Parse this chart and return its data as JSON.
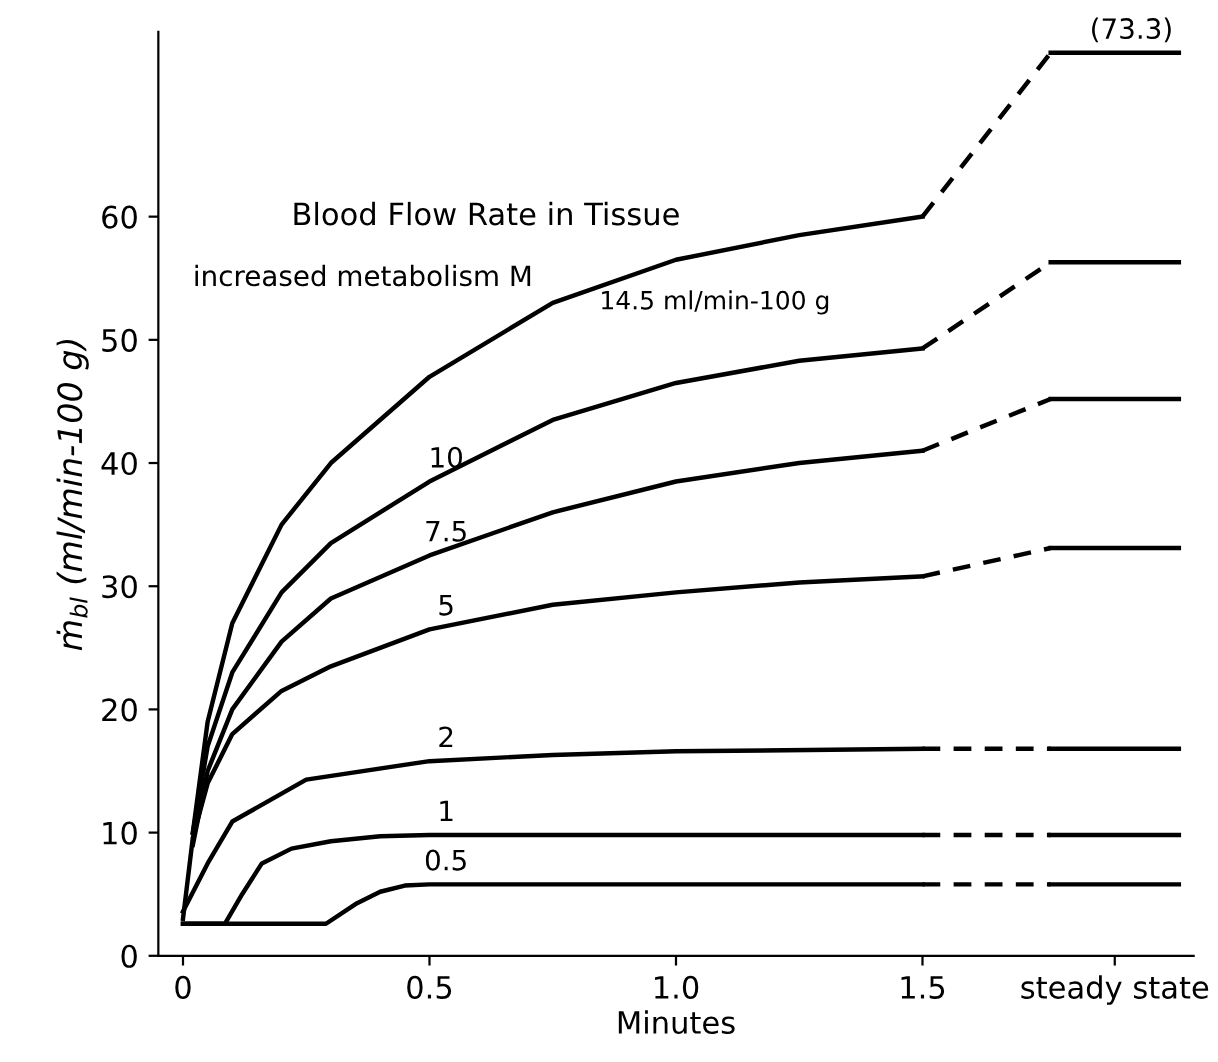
{
  "chart_data": {
    "type": "line",
    "title": "Blood Flow Rate in Tissue",
    "subtitle": "increased metabolism M",
    "xlabel": "Minutes",
    "ylabel": "ṁ$_{bl}$ (ml/min-100 g)",
    "xlim": [
      -0.05,
      2.05
    ],
    "ylim": [
      0,
      75
    ],
    "xticks": [
      0,
      0.5,
      {
        "value": 1.0,
        "label": "1.0"
      },
      1.5,
      {
        "value": 1.89,
        "label": "steady state"
      }
    ],
    "yticks": [
      0,
      10,
      20,
      30,
      40,
      50,
      60
    ],
    "grid": false,
    "legend": false,
    "marker": "none",
    "series": [
      {
        "color": "#000000",
        "line_style": "solid",
        "x": [
          0.02,
          0.05,
          0.1,
          0.2,
          0.3,
          0.5,
          0.75,
          1.0,
          1.25,
          1.5
        ],
        "values": [
          10,
          19,
          27,
          35,
          40,
          47,
          53,
          56.5,
          58.5,
          60
        ]
      },
      {
        "color": "#000000",
        "line_style": "dashed",
        "x": [
          1.5,
          1.76
        ],
        "values": [
          60,
          73.3
        ]
      },
      {
        "color": "#000000",
        "line_style": "solid",
        "x": [
          1.76,
          2.02
        ],
        "values": [
          73.3,
          73.3
        ]
      },
      {
        "color": "#000000",
        "line_style": "solid",
        "x": [
          0.02,
          0.05,
          0.1,
          0.2,
          0.3,
          0.5,
          0.75,
          1.0,
          1.25,
          1.5
        ],
        "values": [
          10,
          17,
          23,
          29.5,
          33.5,
          38.5,
          43.5,
          46.5,
          48.3,
          49.3
        ]
      },
      {
        "color": "#000000",
        "line_style": "dashed",
        "x": [
          1.5,
          1.76
        ],
        "values": [
          49.3,
          56.3
        ]
      },
      {
        "color": "#000000",
        "line_style": "solid",
        "x": [
          1.76,
          2.02
        ],
        "values": [
          56.3,
          56.3
        ]
      },
      {
        "color": "#000000",
        "line_style": "solid",
        "x": [
          0.02,
          0.05,
          0.1,
          0.2,
          0.3,
          0.5,
          0.75,
          1.0,
          1.25,
          1.5
        ],
        "values": [
          9,
          15,
          20,
          25.5,
          29,
          32.5,
          36,
          38.5,
          40,
          41
        ]
      },
      {
        "color": "#000000",
        "line_style": "dashed",
        "x": [
          1.5,
          1.76
        ],
        "values": [
          41,
          45.2
        ]
      },
      {
        "color": "#000000",
        "line_style": "solid",
        "x": [
          1.76,
          2.02
        ],
        "values": [
          45.2,
          45.2
        ]
      },
      {
        "color": "#000000",
        "line_style": "solid",
        "x": [
          0,
          0.02,
          0.05,
          0.1,
          0.2,
          0.3,
          0.5,
          0.75,
          1.0,
          1.25,
          1.5
        ],
        "values": [
          3,
          9.6,
          14,
          18,
          21.5,
          23.5,
          26.5,
          28.5,
          29.5,
          30.3,
          30.8
        ]
      },
      {
        "color": "#000000",
        "line_style": "dashed",
        "x": [
          1.5,
          1.76
        ],
        "values": [
          30.8,
          33.1
        ]
      },
      {
        "color": "#000000",
        "line_style": "solid",
        "x": [
          1.76,
          2.02
        ],
        "values": [
          33.1,
          33.1
        ]
      },
      {
        "color": "#000000",
        "line_style": "solid",
        "x": [
          0,
          0.05,
          0.1,
          0.25,
          0.5,
          0.75,
          1.0,
          1.5
        ],
        "values": [
          3.6,
          7.5,
          10.9,
          14.3,
          15.8,
          16.3,
          16.6,
          16.8
        ]
      },
      {
        "color": "#000000",
        "line_style": "dashed",
        "x": [
          1.5,
          1.76
        ],
        "values": [
          16.8,
          16.8
        ]
      },
      {
        "color": "#000000",
        "line_style": "solid",
        "x": [
          1.76,
          2.02
        ],
        "values": [
          16.8,
          16.8
        ]
      },
      {
        "color": "#000000",
        "line_style": "solid",
        "x": [
          0,
          0.085,
          0.12,
          0.16,
          0.22,
          0.3,
          0.4,
          0.5,
          1.5
        ],
        "values": [
          2.6,
          2.6,
          5,
          7.5,
          8.7,
          9.3,
          9.7,
          9.8,
          9.8
        ]
      },
      {
        "color": "#000000",
        "line_style": "dashed",
        "x": [
          1.5,
          1.76
        ],
        "values": [
          9.8,
          9.8
        ]
      },
      {
        "color": "#000000",
        "line_style": "solid",
        "x": [
          1.76,
          2.02
        ],
        "values": [
          9.8,
          9.8
        ]
      },
      {
        "color": "#000000",
        "line_style": "solid",
        "x": [
          0,
          0.29,
          0.35,
          0.4,
          0.45,
          0.5,
          1.5
        ],
        "values": [
          2.6,
          2.6,
          4.2,
          5.2,
          5.7,
          5.8,
          5.8
        ]
      },
      {
        "color": "#000000",
        "line_style": "dashed",
        "x": [
          1.5,
          1.76
        ],
        "values": [
          5.8,
          5.8
        ]
      },
      {
        "color": "#000000",
        "line_style": "solid",
        "x": [
          1.76,
          2.02
        ],
        "values": [
          5.8,
          5.8
        ]
      }
    ],
    "annotations": [
      {
        "text": "14.5 ml/min-100 g",
        "x": 1.0,
        "y": 56.5
      },
      {
        "text": "10",
        "x": 0.5,
        "y": 38.5
      },
      {
        "text": "7.5",
        "x": 0.5,
        "y": 32.5
      },
      {
        "text": "5",
        "x": 0.5,
        "y": 26.5
      },
      {
        "text": "2",
        "x": 0.5,
        "y": 15.8
      },
      {
        "text": "1",
        "x": 0.5,
        "y": 9.8
      },
      {
        "text": "0.5",
        "x": 0.5,
        "y": 5.8
      },
      {
        "text": "(73.3)",
        "x": 1.89,
        "y": 73.3
      }
    ]
  }
}
